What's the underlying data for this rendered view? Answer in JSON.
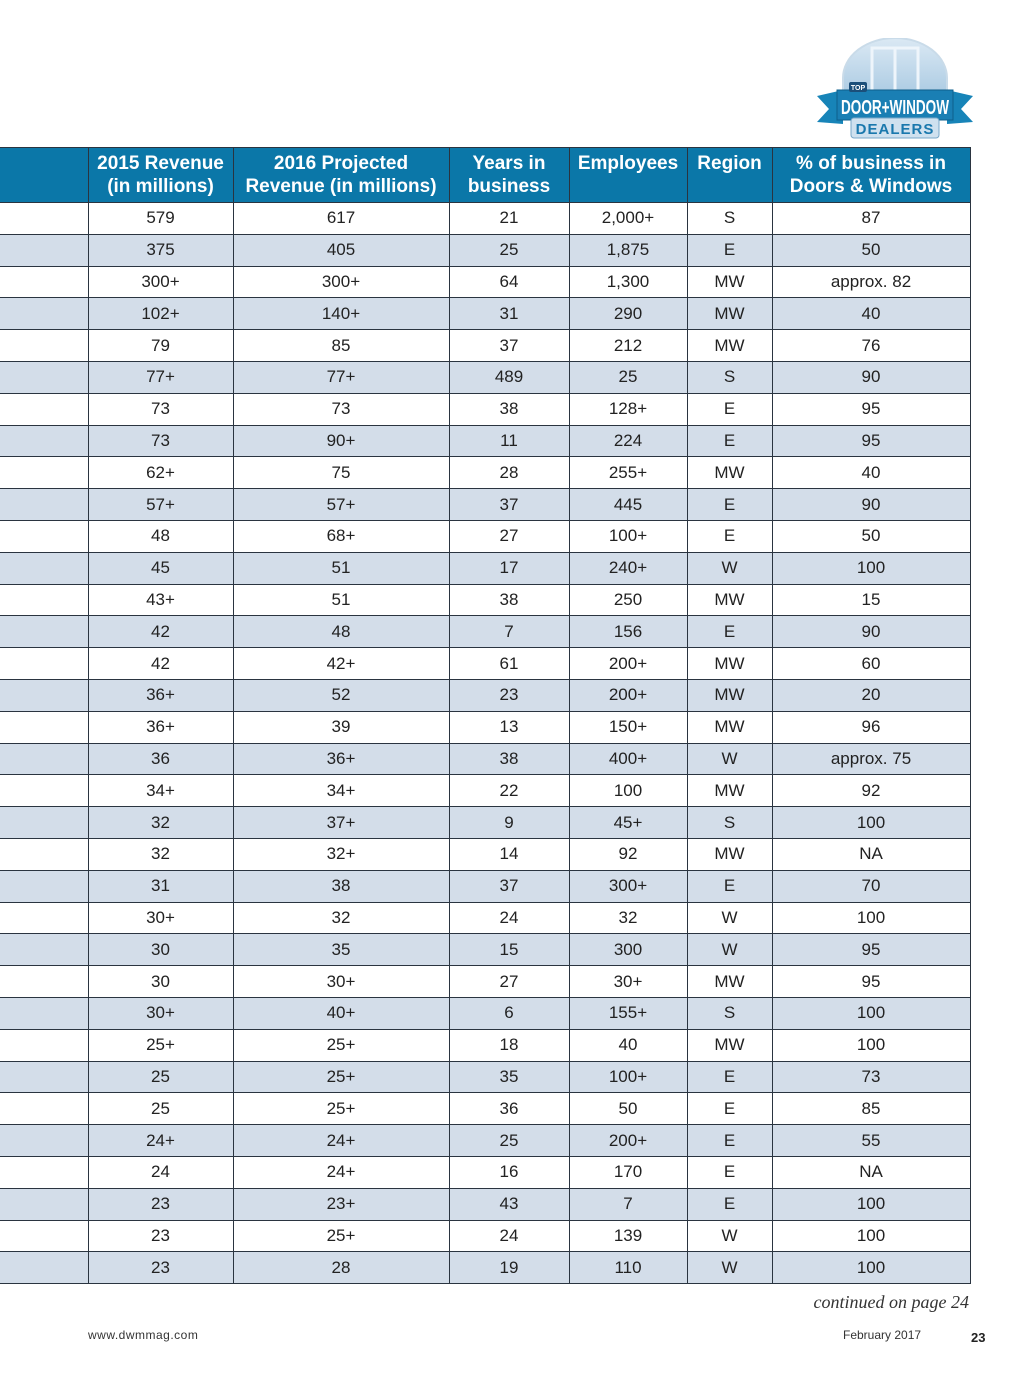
{
  "logo": {
    "text_top": "TOP",
    "text_main": "DOOR+WINDOW",
    "text_sub": "DEALERS"
  },
  "colors": {
    "header": "#0b77a8",
    "stripe": "#d3dde9",
    "border": "#2a3440"
  },
  "table": {
    "headers": [
      "",
      "2015 Revenue\n(in millions)",
      "2016 Projected\nRevenue (in millions)",
      "Years in\nbusiness",
      "Employees",
      "Region",
      "% of business in\nDoors & Windows"
    ],
    "rows": [
      [
        "579",
        "617",
        "21",
        "2,000+",
        "S",
        "87"
      ],
      [
        "375",
        "405",
        "25",
        "1,875",
        "E",
        "50"
      ],
      [
        "300+",
        "300+",
        "64",
        "1,300",
        "MW",
        "approx. 82"
      ],
      [
        "102+",
        "140+",
        "31",
        "290",
        "MW",
        "40"
      ],
      [
        "79",
        "85",
        "37",
        "212",
        "MW",
        "76"
      ],
      [
        "77+",
        "77+",
        "489",
        "25",
        "S",
        "90"
      ],
      [
        "73",
        "73",
        "38",
        "128+",
        "E",
        "95"
      ],
      [
        "73",
        "90+",
        "11",
        "224",
        "E",
        "95"
      ],
      [
        "62+",
        "75",
        "28",
        "255+",
        "MW",
        "40"
      ],
      [
        "57+",
        "57+",
        "37",
        "445",
        "E",
        "90"
      ],
      [
        "48",
        "68+",
        "27",
        "100+",
        "E",
        "50"
      ],
      [
        "45",
        "51",
        "17",
        "240+",
        "W",
        "100"
      ],
      [
        "43+",
        "51",
        "38",
        "250",
        "MW",
        "15"
      ],
      [
        "42",
        "48",
        "7",
        "156",
        "E",
        "90"
      ],
      [
        "42",
        "42+",
        "61",
        "200+",
        "MW",
        "60"
      ],
      [
        "36+",
        "52",
        "23",
        "200+",
        "MW",
        "20"
      ],
      [
        "36+",
        "39",
        "13",
        "150+",
        "MW",
        "96"
      ],
      [
        "36",
        "36+",
        "38",
        "400+",
        "W",
        "approx. 75"
      ],
      [
        "34+",
        "34+",
        "22",
        "100",
        "MW",
        "92"
      ],
      [
        "32",
        "37+",
        "9",
        "45+",
        "S",
        "100"
      ],
      [
        "32",
        "32+",
        "14",
        "92",
        "MW",
        "NA"
      ],
      [
        "31",
        "38",
        "37",
        "300+",
        "E",
        "70"
      ],
      [
        "30+",
        "32",
        "24",
        "32",
        "W",
        "100"
      ],
      [
        "30",
        "35",
        "15",
        "300",
        "W",
        "95"
      ],
      [
        "30",
        "30+",
        "27",
        "30+",
        "MW",
        "95"
      ],
      [
        "30+",
        "40+",
        "6",
        "155+",
        "S",
        "100"
      ],
      [
        "25+",
        "25+",
        "18",
        "40",
        "MW",
        "100"
      ],
      [
        "25",
        "25+",
        "35",
        "100+",
        "E",
        "73"
      ],
      [
        "25",
        "25+",
        "36",
        "50",
        "E",
        "85"
      ],
      [
        "24+",
        "24+",
        "25",
        "200+",
        "E",
        "55"
      ],
      [
        "24",
        "24+",
        "16",
        "170",
        "E",
        "NA"
      ],
      [
        "23",
        "23+",
        "43",
        "7",
        "E",
        "100"
      ],
      [
        "23",
        "25+",
        "24",
        "139",
        "W",
        "100"
      ],
      [
        "23",
        "28",
        "19",
        "110",
        "W",
        "100"
      ]
    ]
  },
  "footer": {
    "continued": "continued on page 24",
    "url": "www.dwmmag.com",
    "date": "February 2017",
    "page": "23"
  }
}
